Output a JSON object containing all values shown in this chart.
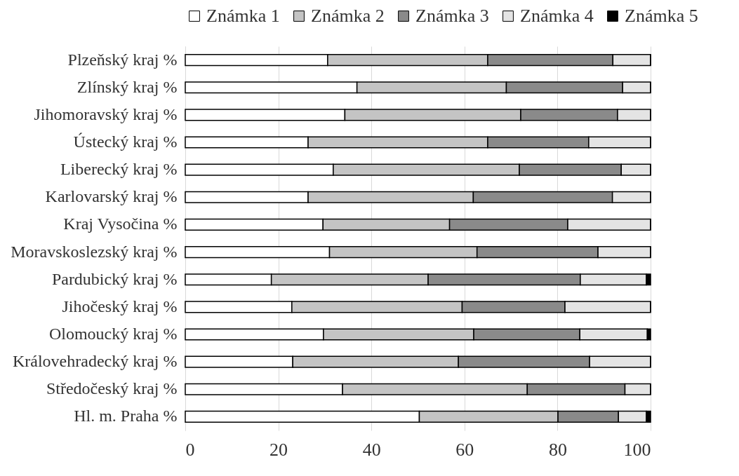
{
  "chart_data": {
    "type": "bar",
    "orientation": "horizontal",
    "stacked": true,
    "categories": [
      "Plzeňský  kraj %",
      "Zlínský  kraj %",
      "Jihomoravský  kraj %",
      "Ústecký  kraj %",
      "Liberecký  kraj %",
      "Karlovarský  kraj %",
      "Kraj Vysočina %",
      "Moravskoslezský  kraj %",
      "Pardubický  kraj %",
      "Jihočeský  kraj %",
      "Olomoucký kraj %",
      "Královehradecký  kraj %",
      "Středočeský kraj %",
      "Hl. m. Praha %"
    ],
    "series": [
      {
        "name": "Známka 1",
        "color": "#ffffff",
        "values": [
          30.6,
          36.9,
          34.3,
          26.4,
          31.8,
          26.4,
          29.6,
          31.0,
          18.5,
          22.9,
          29.7,
          23.1,
          33.8,
          50.3
        ]
      },
      {
        "name": "Známka 2",
        "color": "#c4c4c4",
        "values": [
          34.4,
          32.1,
          37.8,
          38.6,
          40.0,
          35.5,
          27.2,
          31.7,
          33.7,
          36.6,
          32.3,
          35.6,
          39.7,
          29.8
        ]
      },
      {
        "name": "Známka 3",
        "color": "#8a8a8a",
        "values": [
          26.9,
          25.0,
          20.8,
          21.7,
          21.9,
          29.9,
          25.4,
          26.0,
          32.7,
          22.1,
          22.8,
          28.2,
          21.0,
          13.0
        ]
      },
      {
        "name": "Známka 4",
        "color": "#e4e4e4",
        "values": [
          8.1,
          6.0,
          7.1,
          13.3,
          6.3,
          8.2,
          17.8,
          11.3,
          14.2,
          18.4,
          14.5,
          13.1,
          5.5,
          6.0
        ]
      },
      {
        "name": "Známka 5",
        "color": "#000000",
        "values": [
          0,
          0,
          0,
          0,
          0,
          0,
          0,
          0,
          0.9,
          0,
          0.7,
          0,
          0,
          0.9
        ]
      }
    ],
    "xlim": [
      0,
      100
    ],
    "xticks": [
      0,
      20,
      40,
      60,
      80,
      100
    ],
    "grid": "x",
    "legend": "top"
  }
}
